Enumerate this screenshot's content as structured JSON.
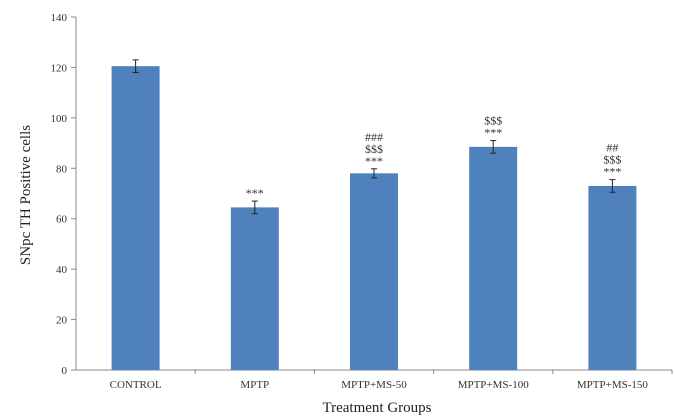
{
  "chart_data": {
    "type": "bar",
    "title": "",
    "xlabel": "Treatment Groups",
    "ylabel": "SNpc TH Positive cells",
    "ylim": [
      0,
      140
    ],
    "yticks": [
      0,
      20,
      40,
      60,
      80,
      100,
      120,
      140
    ],
    "grid": false,
    "legend": "none",
    "categories": [
      "CONTROL",
      "MPTP",
      "MPTP+MS-50",
      "MPTP+MS-100",
      "MPTP+MS-150"
    ],
    "values": [
      120.5,
      64.5,
      78,
      88.5,
      73
    ],
    "errors": [
      2.5,
      2.5,
      1.8,
      2.5,
      2.5
    ],
    "significance": [
      [],
      [
        "***"
      ],
      [
        "###",
        "$$$",
        "***"
      ],
      [
        "$$$",
        "***"
      ],
      [
        "##",
        "$$$",
        "***"
      ]
    ],
    "bar_color": "#4F81BD"
  }
}
